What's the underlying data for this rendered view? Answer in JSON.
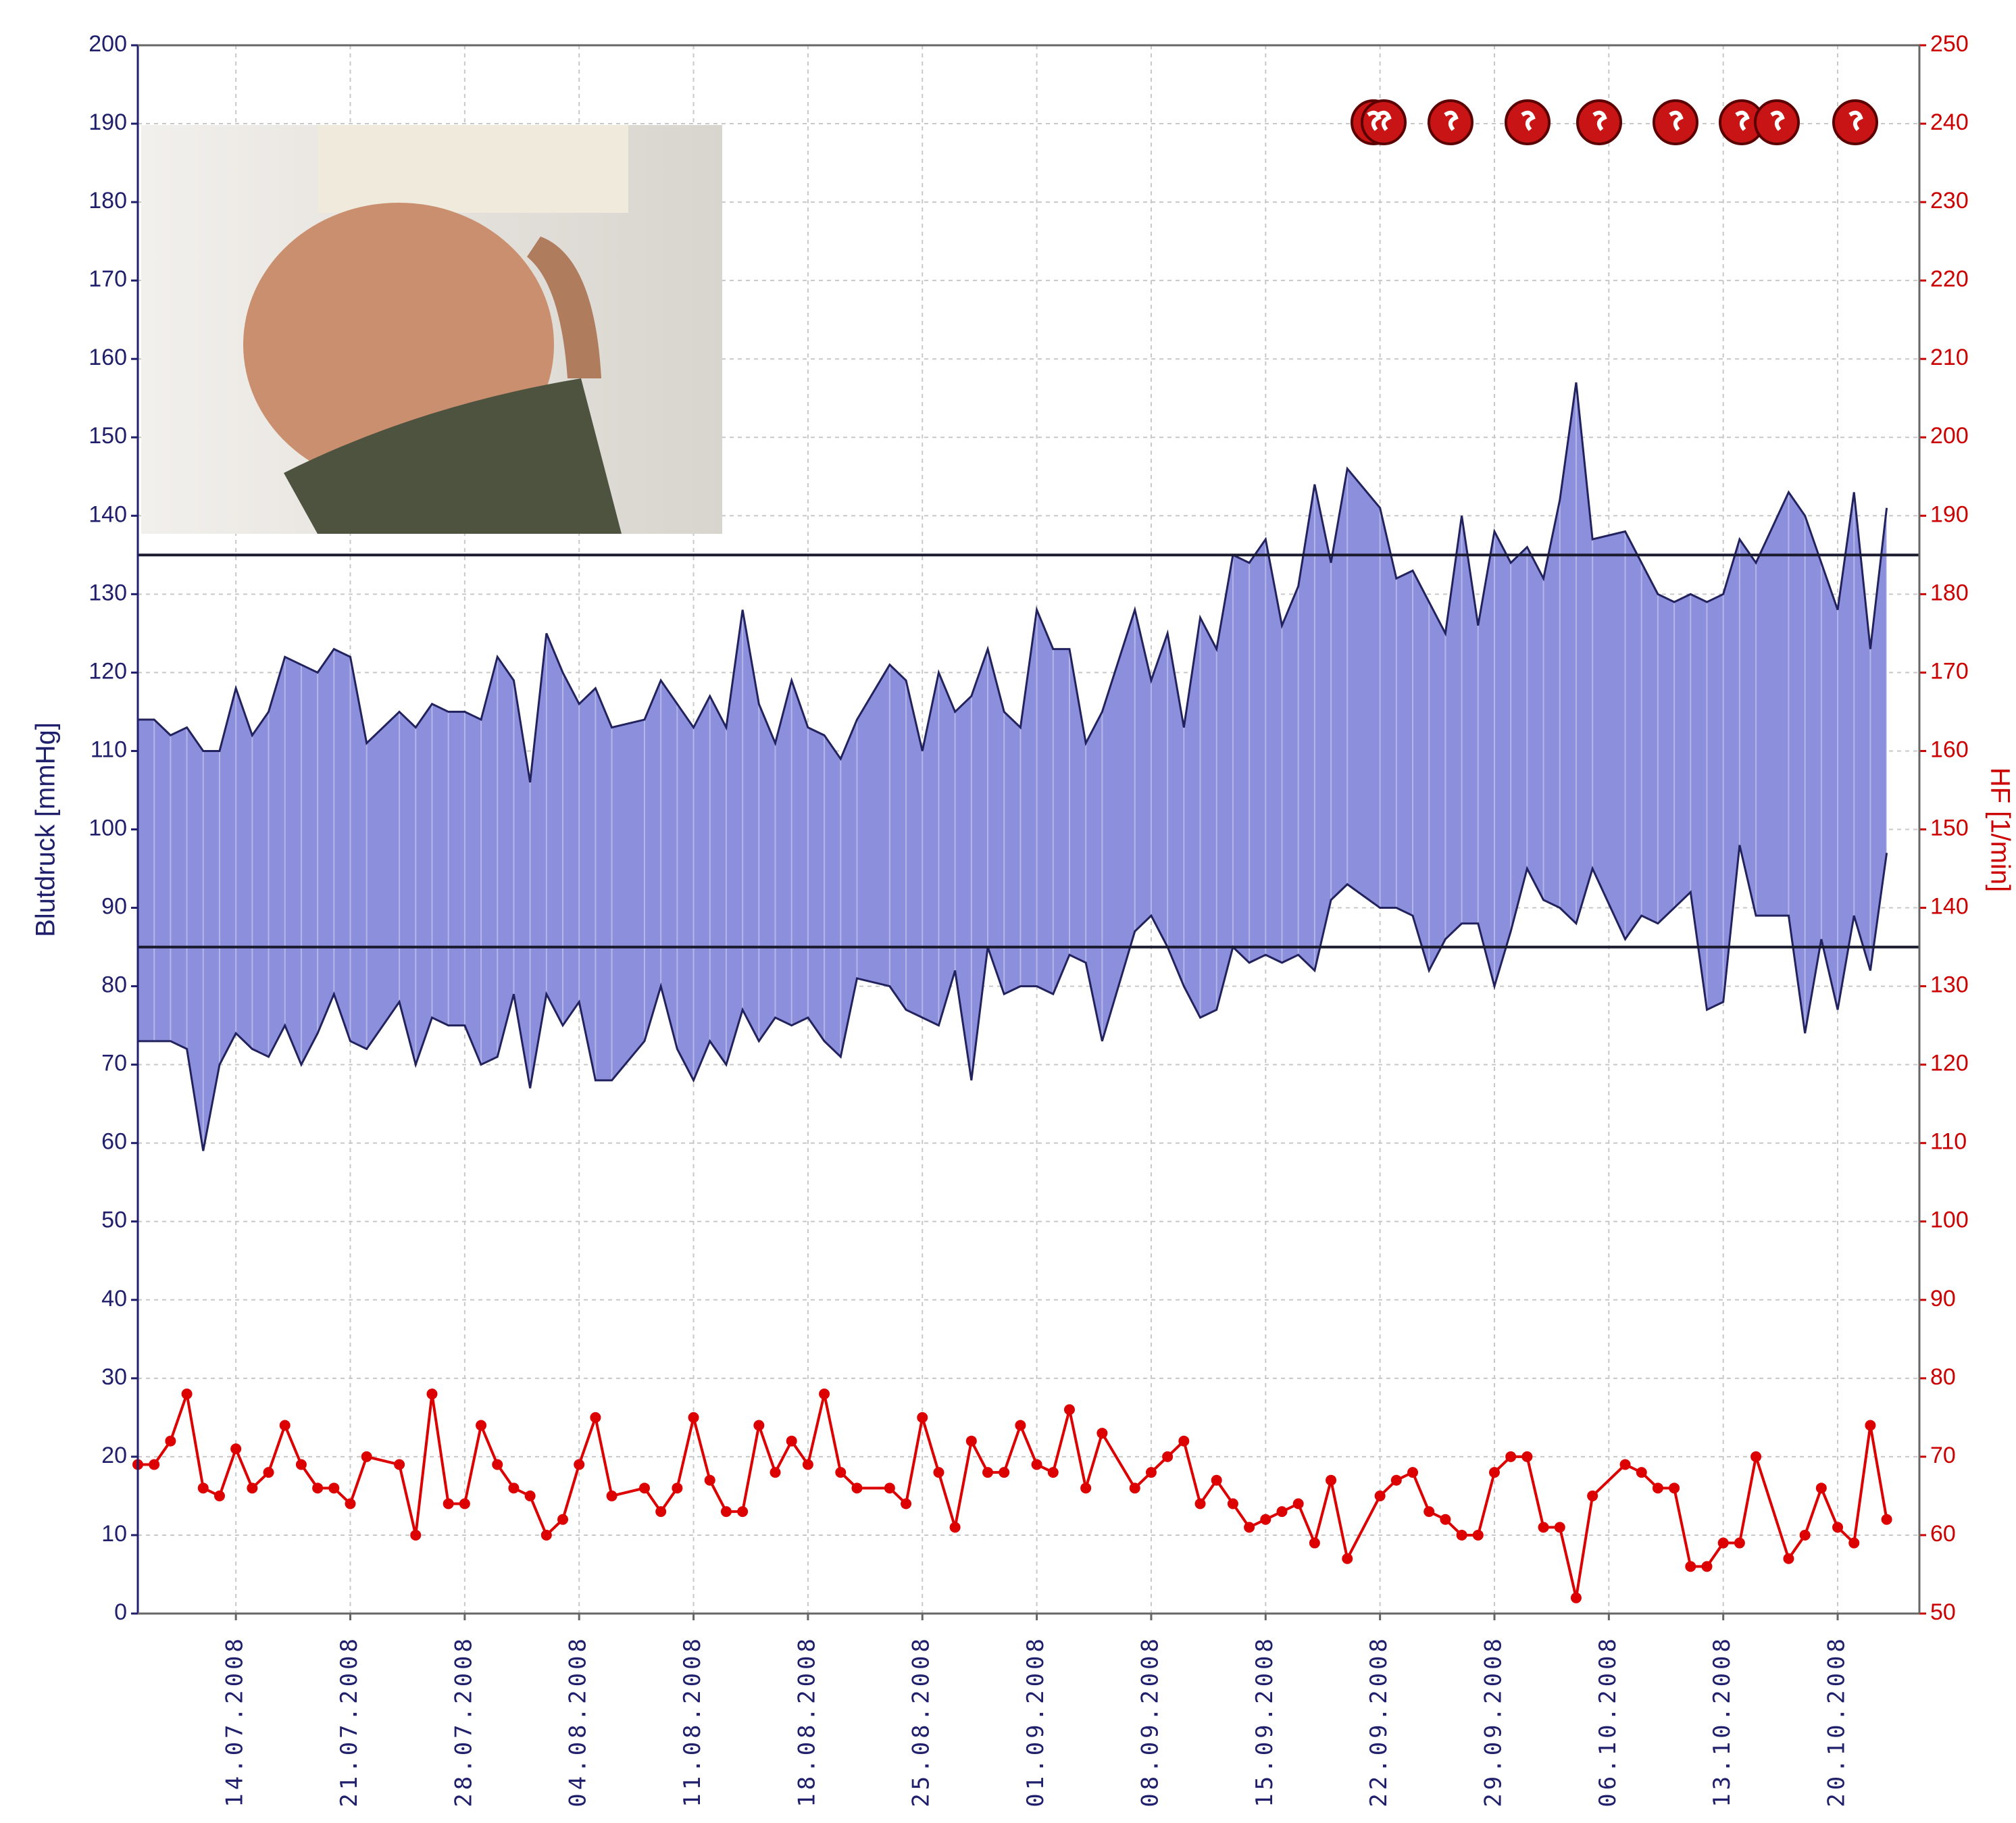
{
  "chart_data": {
    "type": "band",
    "x": [
      "08.07.2008",
      "09.07.2008",
      "10.07.2008",
      "11.07.2008",
      "12.07.2008",
      "13.07.2008",
      "14.07.2008",
      "15.07.2008",
      "16.07.2008",
      "17.07.2008",
      "18.07.2008",
      "19.07.2008",
      "20.07.2008",
      "21.07.2008",
      "22.07.2008",
      "24.07.2008",
      "25.07.2008",
      "26.07.2008",
      "27.07.2008",
      "28.07.2008",
      "29.07.2008",
      "30.07.2008",
      "31.07.2008",
      "01.08.2008",
      "02.08.2008",
      "03.08.2008",
      "04.08.2008",
      "05.08.2008",
      "06.08.2008",
      "08.08.2008",
      "09.08.2008",
      "10.08.2008",
      "11.08.2008",
      "12.08.2008",
      "13.08.2008",
      "14.08.2008",
      "15.08.2008",
      "16.08.2008",
      "17.08.2008",
      "18.08.2008",
      "19.08.2008",
      "20.08.2008",
      "21.08.2008",
      "23.08.2008",
      "24.08.2008",
      "25.08.2008",
      "26.08.2008",
      "27.08.2008",
      "28.08.2008",
      "29.08.2008",
      "30.08.2008",
      "31.08.2008",
      "01.09.2008",
      "02.09.2008",
      "03.09.2008",
      "04.09.2008",
      "05.09.2008",
      "07.09.2008",
      "08.09.2008",
      "09.09.2008",
      "10.09.2008",
      "11.09.2008",
      "12.09.2008",
      "13.09.2008",
      "14.09.2008",
      "15.09.2008",
      "16.09.2008",
      "17.09.2008",
      "18.09.2008",
      "19.09.2008",
      "20.09.2008",
      "22.09.2008",
      "23.09.2008",
      "24.09.2008",
      "25.09.2008",
      "26.09.2008",
      "27.09.2008",
      "28.09.2008",
      "29.09.2008",
      "30.09.2008",
      "01.10.2008",
      "02.10.2008",
      "03.10.2008",
      "04.10.2008",
      "05.10.2008",
      "07.10.2008",
      "08.10.2008",
      "09.10.2008",
      "10.10.2008",
      "11.10.2008",
      "12.10.2008",
      "13.10.2008",
      "14.10.2008",
      "15.10.2008",
      "17.10.2008",
      "18.10.2008",
      "19.10.2008",
      "20.10.2008",
      "21.10.2008",
      "22.10.2008",
      "23.10.2008"
    ],
    "xlim": [
      "08.07.2008",
      "25.10.2008"
    ],
    "xticks": [
      "14.07.2008",
      "21.07.2008",
      "28.07.2008",
      "04.08.2008",
      "11.08.2008",
      "18.08.2008",
      "25.08.2008",
      "01.09.2008",
      "08.09.2008",
      "15.09.2008",
      "22.09.2008",
      "29.09.2008",
      "06.10.2008",
      "13.10.2008",
      "20.10.2008"
    ],
    "ylim": [
      0,
      200
    ],
    "yticks": [
      0,
      10,
      20,
      30,
      40,
      50,
      60,
      70,
      80,
      90,
      100,
      110,
      120,
      130,
      140,
      150,
      160,
      170,
      180,
      190,
      200
    ],
    "y2lim": [
      50,
      250
    ],
    "y2ticks": [
      50,
      60,
      70,
      80,
      90,
      100,
      110,
      120,
      130,
      140,
      150,
      160,
      170,
      180,
      190,
      200,
      210,
      220,
      230,
      240,
      250
    ],
    "ylabel": "Blutdruck [mmHg]",
    "y2label": "HF [1/min]",
    "grid": true,
    "reference_lines": [
      135,
      85
    ],
    "series": [
      {
        "color": "#8c8fdc",
        "values": [
          114,
          114,
          112,
          113,
          110,
          110,
          118,
          112,
          115,
          122,
          121,
          120,
          123,
          122,
          111,
          115,
          113,
          116,
          115,
          115,
          114,
          122,
          119,
          106,
          125,
          120,
          116,
          118,
          113,
          114,
          119,
          116,
          113,
          117,
          113,
          128,
          116,
          111,
          119,
          113,
          112,
          109,
          114,
          121,
          119,
          110,
          120,
          115,
          117,
          123,
          115,
          113,
          128,
          123,
          123,
          111,
          115,
          128,
          119,
          125,
          113,
          127,
          123,
          135,
          134,
          137,
          126,
          131,
          144,
          134,
          146,
          141,
          132,
          133,
          129,
          125,
          140,
          126,
          138,
          134,
          136,
          132,
          142,
          157,
          137,
          138,
          134,
          130,
          129,
          130,
          129,
          130,
          137,
          134,
          143,
          140,
          134,
          128,
          143,
          123,
          141
        ]
      },
      {
        "color": "#8c8fdc",
        "values": [
          73,
          73,
          73,
          72,
          59,
          70,
          74,
          72,
          71,
          75,
          70,
          74,
          79,
          73,
          72,
          78,
          70,
          76,
          75,
          75,
          70,
          71,
          79,
          67,
          79,
          75,
          78,
          68,
          68,
          73,
          80,
          72,
          68,
          73,
          70,
          77,
          73,
          76,
          75,
          76,
          73,
          71,
          81,
          80,
          77,
          76,
          75,
          82,
          68,
          85,
          79,
          80,
          80,
          79,
          84,
          83,
          73,
          87,
          89,
          85,
          80,
          76,
          77,
          85,
          83,
          84,
          83,
          84,
          82,
          91,
          93,
          90,
          90,
          89,
          82,
          86,
          88,
          88,
          80,
          87,
          95,
          91,
          90,
          88,
          95,
          86,
          89,
          88,
          90,
          92,
          77,
          78,
          98,
          89,
          89,
          74,
          86,
          77,
          89,
          82,
          97
        ]
      },
      {
        "color": "#dd0000",
        "axis": "y2",
        "values": [
          69,
          69,
          72,
          78,
          66,
          65,
          71,
          66,
          68,
          74,
          69,
          66,
          66,
          64,
          70,
          69,
          60,
          78,
          64,
          64,
          74,
          69,
          66,
          65,
          60,
          62,
          69,
          75,
          65,
          66,
          63,
          66,
          75,
          67,
          63,
          63,
          74,
          68,
          72,
          69,
          78,
          68,
          66,
          66,
          64,
          75,
          68,
          61,
          72,
          68,
          68,
          74,
          69,
          68,
          76,
          66,
          73,
          66,
          68,
          70,
          72,
          64,
          67,
          64,
          61,
          62,
          63,
          64,
          59,
          67,
          57,
          65,
          67,
          68,
          63,
          62,
          60,
          60,
          68,
          70,
          70,
          61,
          61,
          52,
          65,
          69,
          68,
          66,
          66,
          56,
          56,
          59,
          59,
          70,
          57,
          60,
          66,
          61,
          59,
          74,
          62
        ]
      }
    ]
  }
}
